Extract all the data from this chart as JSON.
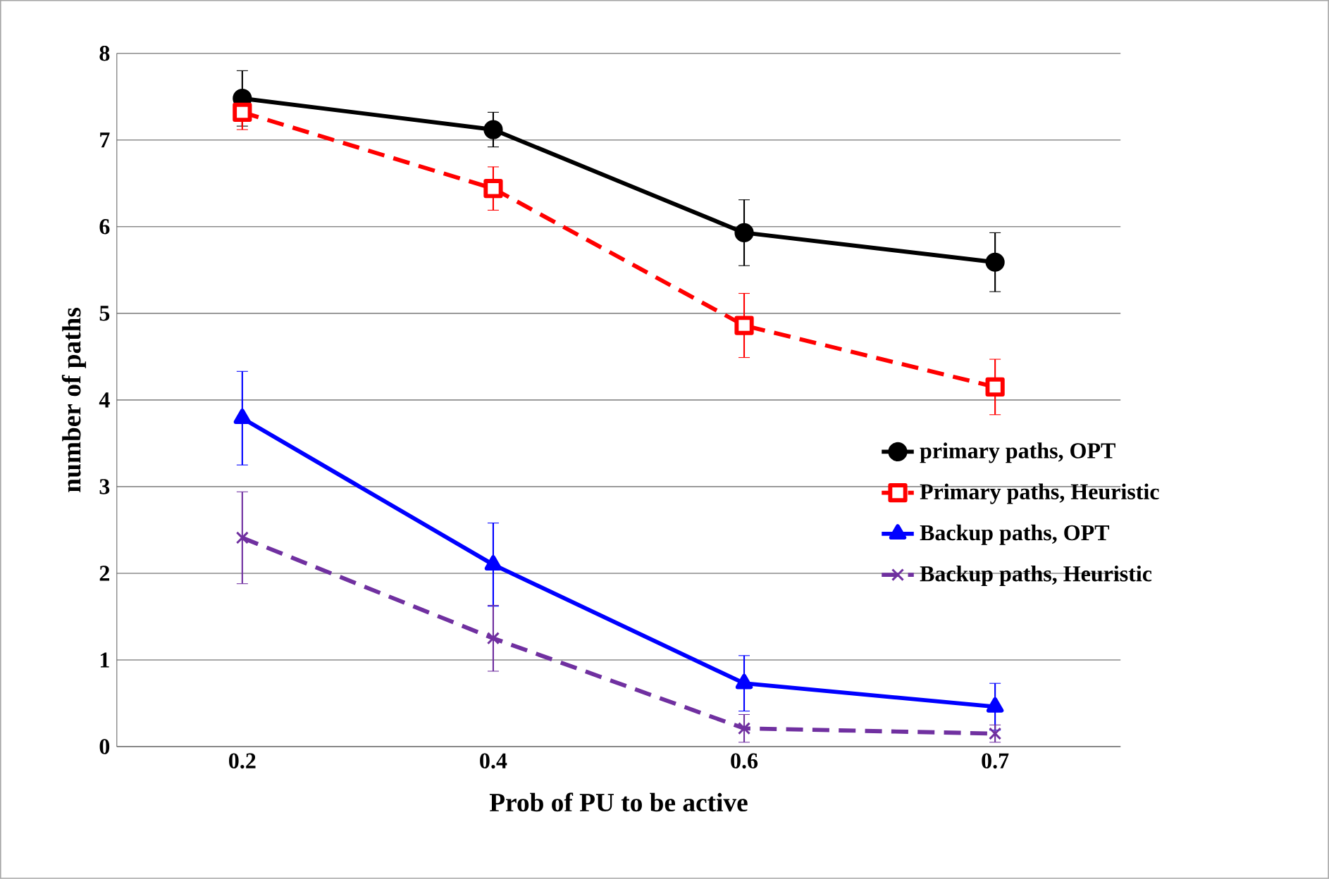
{
  "chart_data": {
    "type": "line",
    "xlabel": "Prob of PU to be active",
    "ylabel": "number of paths",
    "categories": [
      "0.2",
      "0.4",
      "0.6",
      "0.7"
    ],
    "ylim": [
      0,
      8
    ],
    "yticks": [
      0,
      1,
      2,
      3,
      4,
      5,
      6,
      7,
      8
    ],
    "grid": "y",
    "legend": "right",
    "series": [
      {
        "name": "primary paths, OPT",
        "color": "#000000",
        "marker": "circle",
        "line_style": "solid",
        "values": [
          7.48,
          7.12,
          5.93,
          5.59
        ],
        "errors": [
          0.32,
          0.2,
          0.38,
          0.34
        ]
      },
      {
        "name": "Primary paths, Heuristic",
        "color": "#ff0000",
        "marker": "square",
        "line_style": "dashed",
        "values": [
          7.32,
          6.44,
          4.86,
          4.15
        ],
        "errors": [
          0.2,
          0.25,
          0.37,
          0.32
        ]
      },
      {
        "name": "Backup paths, OPT",
        "color": "#0000ff",
        "marker": "triangle",
        "line_style": "solid",
        "values": [
          3.79,
          2.1,
          0.73,
          0.46
        ],
        "errors": [
          0.54,
          0.48,
          0.32,
          0.27
        ]
      },
      {
        "name": "Backup paths, Heuristic",
        "color": "#7030a0",
        "marker": "cross",
        "line_style": "dashed",
        "values": [
          2.41,
          1.25,
          0.21,
          0.15
        ],
        "errors": [
          0.53,
          0.38,
          0.16,
          0.1
        ]
      }
    ]
  }
}
